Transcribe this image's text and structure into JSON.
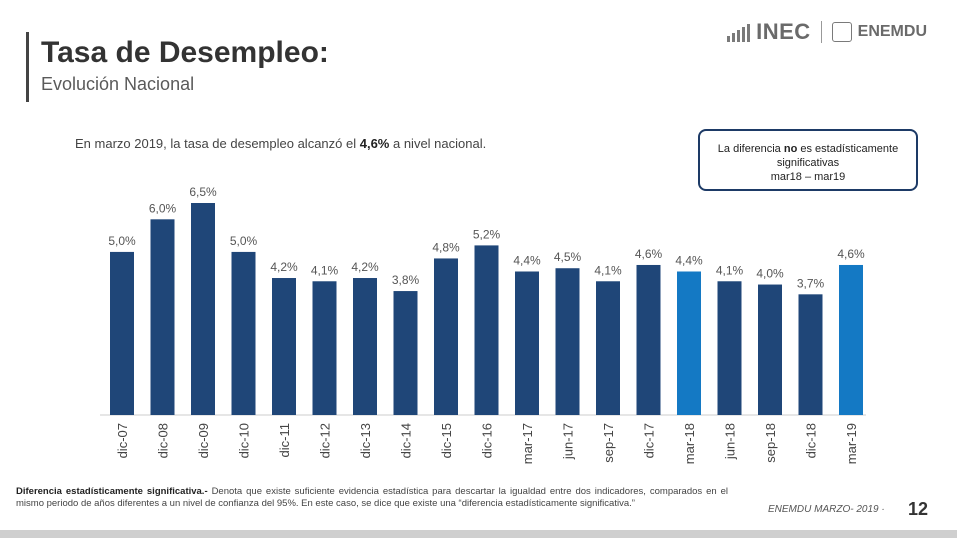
{
  "header": {
    "title": "Tasa de Desempleo:",
    "subtitle": "Evolución Nacional",
    "logo_inec": "INEC",
    "logo_enemdu": "ENEMDU"
  },
  "intro": {
    "prefix": "En marzo 2019, la tasa de desempleo alcanzó el ",
    "highlight": "4,6%",
    "suffix": " a nivel nacional."
  },
  "note": {
    "pre": "La  diferencia ",
    "bold": "no",
    "post": " es estadísticamente",
    "line2": "significativas",
    "line3": "mar18 – mar19"
  },
  "chart_data": {
    "type": "bar",
    "title": "",
    "xlabel": "",
    "ylabel": "",
    "categories": [
      "dic-07",
      "dic-08",
      "dic-09",
      "dic-10",
      "dic-11",
      "dic-12",
      "dic-13",
      "dic-14",
      "dic-15",
      "dic-16",
      "mar-17",
      "jun-17",
      "sep-17",
      "dic-17",
      "mar-18",
      "jun-18",
      "sep-18",
      "dic-18",
      "mar-19"
    ],
    "values": [
      5.0,
      6.0,
      6.5,
      5.0,
      4.2,
      4.1,
      4.2,
      3.8,
      4.8,
      5.2,
      4.4,
      4.5,
      4.1,
      4.6,
      4.4,
      4.1,
      4.0,
      3.7,
      4.6
    ],
    "labels": [
      "5,0%",
      "6,0%",
      "6,5%",
      "5,0%",
      "4,2%",
      "4,1%",
      "4,2%",
      "3,8%",
      "4,8%",
      "5,2%",
      "4,4%",
      "4,5%",
      "4,1%",
      "4,6%",
      "4,4%",
      "4,1%",
      "4,0%",
      "3,7%",
      "4,6%"
    ],
    "highlighted": [
      "mar-18",
      "mar-19"
    ],
    "ylim": [
      0,
      6.5
    ],
    "colors": {
      "bar": "#1f4678",
      "highlight": "#1479c4",
      "axis": "#cccccc"
    }
  },
  "footer": {
    "definition_title": "Diferencia estadísticamente significativa.-",
    "definition_text": " Denota que existe suficiente evidencia estadística para descartar la igualdad entre dos indicadores, comparados en el mismo periodo de años diferentes a un nivel de confianza del 95%. En este caso, se dice que existe una “diferencia estadísticamente significativa.”",
    "source": "ENEMDU MARZO- 2019",
    "page_number": "12"
  }
}
